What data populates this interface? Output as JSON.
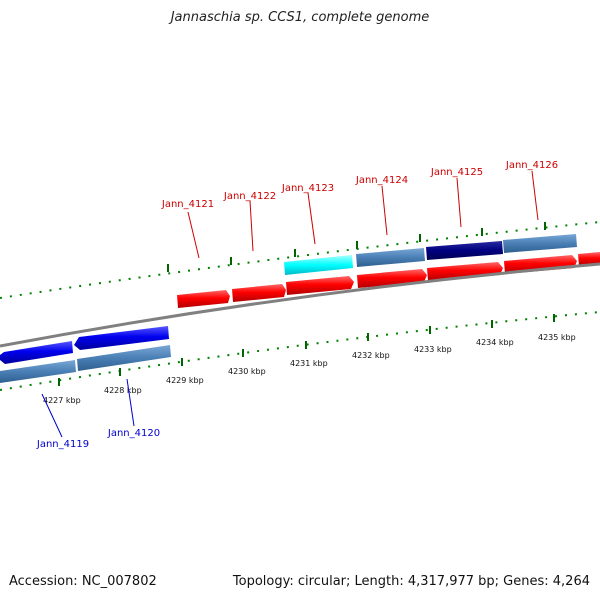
{
  "title": "Jannaschia sp. CCS1, complete genome",
  "accession": "Accession: NC_007802",
  "summary": "Topology: circular; Length: 4,317,977 bp; Genes: 4,264",
  "colors": {
    "forward_gene": "#ff0000",
    "reverse_gene": "#0000ee",
    "highlight_cyan": "#00ffff",
    "highlight_navy": "#000080",
    "track_steelblue": "#4a7fb5",
    "tick_green": "#008000",
    "backbone": "#808080",
    "top_label": "#cc0000",
    "bottom_label": "#0000cc"
  },
  "kbp_labels": [
    "4227 kbp",
    "4228 kbp",
    "4229 kbp",
    "4230 kbp",
    "4231 kbp",
    "4232 kbp",
    "4233 kbp",
    "4234 kbp",
    "4235 kbp"
  ],
  "top_gene_labels": [
    "Jann_4121",
    "Jann_4122",
    "Jann_4123",
    "Jann_4124",
    "Jann_4125",
    "Jann_4126"
  ],
  "bottom_gene_labels": [
    "Jann_4119",
    "Jann_4120"
  ]
}
